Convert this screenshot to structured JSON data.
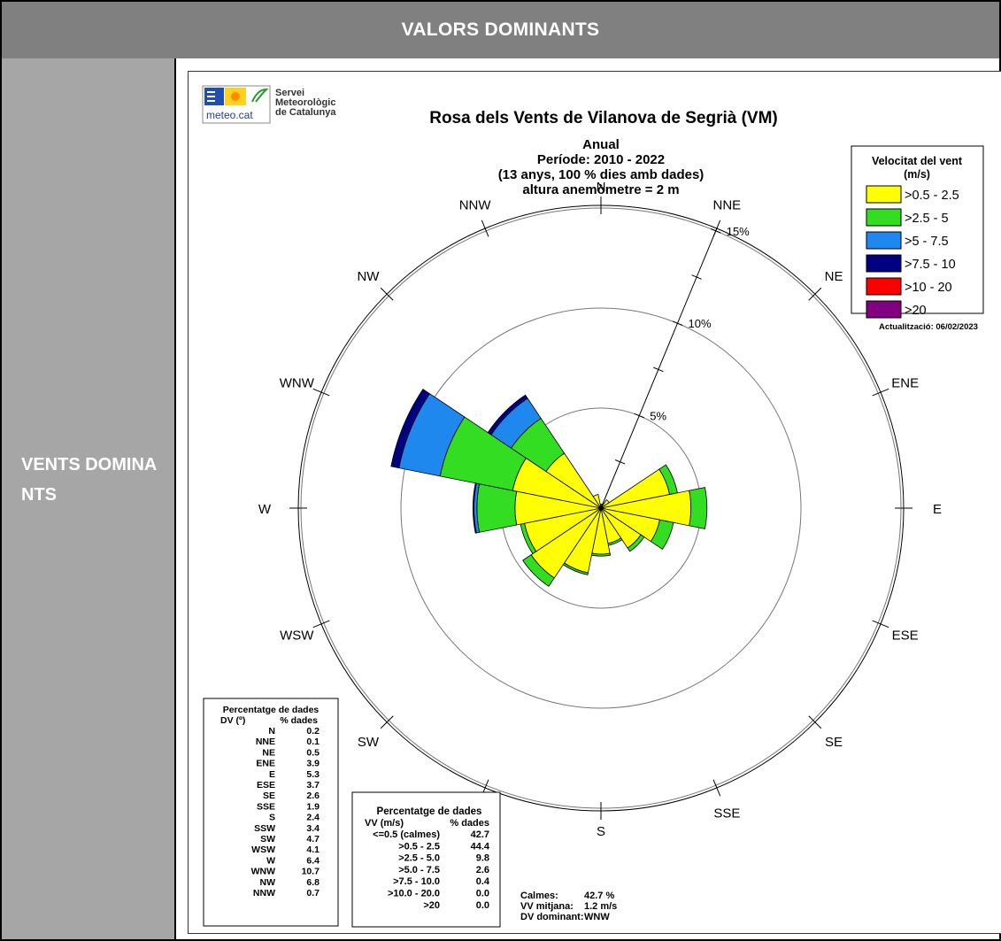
{
  "header": {
    "title": "VALORS DOMINANTS"
  },
  "side": {
    "label": "VENTS DOMINANTS"
  },
  "logo": {
    "brand": "meteo.cat",
    "line1": "Servei",
    "line2": "Meteorològic",
    "line3": "de Catalunya"
  },
  "chart_data": {
    "type": "wind-rose",
    "title": "Rosa dels Vents de Vilanova de Segrià (VM)",
    "subtitle_lines": [
      "Anual",
      "Període: 2010 - 2022",
      "(13 anys, 100 % dies amb dades)",
      "altura anemòmetre = 2 m"
    ],
    "rings": [
      {
        "value": 5,
        "label": "5%"
      },
      {
        "value": 10,
        "label": "10%"
      },
      {
        "value": 15,
        "label": "15%"
      }
    ],
    "directions": [
      "N",
      "NNE",
      "NE",
      "ENE",
      "E",
      "ESE",
      "SE",
      "SSE",
      "S",
      "SSW",
      "SW",
      "WSW",
      "W",
      "WNW",
      "NW",
      "NNW"
    ],
    "legend": {
      "title_lines": [
        "Velocitat del vent",
        "(m/s)"
      ],
      "items": [
        {
          "label": ">0.5 - 2.5",
          "color": "#ffff00"
        },
        {
          "label": ">2.5 - 5",
          "color": "#33dd22"
        },
        {
          "label": ">5 - 7.5",
          "color": "#1e88ee"
        },
        {
          "label": ">7.5 - 10",
          "color": "#000080"
        },
        {
          "label": ">10 - 20",
          "color": "#ff0000"
        },
        {
          "label": ">20",
          "color": "#800080"
        }
      ]
    },
    "update_note": "Actualització: 06/02/2023",
    "series_cumulative": {
      "N": [
        0.2,
        0.2,
        0.2,
        0.2
      ],
      "NNE": [
        0.1,
        0.1,
        0.1,
        0.1
      ],
      "NE": [
        0.5,
        0.5,
        0.5,
        0.5
      ],
      "ENE": [
        3.5,
        3.9,
        3.9,
        3.9
      ],
      "E": [
        4.5,
        5.3,
        5.3,
        5.3
      ],
      "ESE": [
        3.0,
        3.7,
        3.7,
        3.7
      ],
      "SE": [
        2.4,
        2.6,
        2.6,
        2.6
      ],
      "SSE": [
        1.8,
        1.9,
        1.9,
        1.9
      ],
      "S": [
        2.3,
        2.4,
        2.4,
        2.4
      ],
      "SSW": [
        3.3,
        3.4,
        3.4,
        3.4
      ],
      "SW": [
        4.2,
        4.7,
        4.7,
        4.7
      ],
      "WSW": [
        3.9,
        4.1,
        4.1,
        4.1
      ],
      "W": [
        4.3,
        6.2,
        6.35,
        6.4
      ],
      "WNW": [
        4.5,
        8.2,
        10.3,
        10.7
      ],
      "NW": [
        3.3,
        5.4,
        6.6,
        6.8
      ],
      "NNW": [
        0.7,
        0.7,
        0.7,
        0.7
      ]
    },
    "dir_table": {
      "title": "Percentatge de dades",
      "col1": "DV (º)",
      "col2": "% dades",
      "rows": [
        [
          "N",
          "0.2"
        ],
        [
          "NNE",
          "0.1"
        ],
        [
          "NE",
          "0.5"
        ],
        [
          "ENE",
          "3.9"
        ],
        [
          "E",
          "5.3"
        ],
        [
          "ESE",
          "3.7"
        ],
        [
          "SE",
          "2.6"
        ],
        [
          "SSE",
          "1.9"
        ],
        [
          "S",
          "2.4"
        ],
        [
          "SSW",
          "3.4"
        ],
        [
          "SW",
          "4.7"
        ],
        [
          "WSW",
          "4.1"
        ],
        [
          "W",
          "6.4"
        ],
        [
          "WNW",
          "10.7"
        ],
        [
          "NW",
          "6.8"
        ],
        [
          "NNW",
          "0.7"
        ]
      ]
    },
    "speed_table": {
      "title": "Percentatge de dades",
      "col1": "VV (m/s)",
      "col2": "% dades",
      "rows": [
        [
          "<=0.5 (calmes)",
          "42.7"
        ],
        [
          ">0.5 - 2.5",
          "44.4"
        ],
        [
          ">2.5 - 5.0",
          "9.8"
        ],
        [
          ">5.0 - 7.5",
          "2.6"
        ],
        [
          ">7.5 - 10.0",
          "0.4"
        ],
        [
          ">10.0 - 20.0",
          "0.0"
        ],
        [
          ">20",
          "0.0"
        ]
      ]
    },
    "summary": [
      {
        "label": "Calmes:",
        "value": "42.7 %"
      },
      {
        "label": "VV mitjana:",
        "value": "1.2 m/s"
      },
      {
        "label": "DV dominant:",
        "value": "WNW"
      }
    ]
  }
}
